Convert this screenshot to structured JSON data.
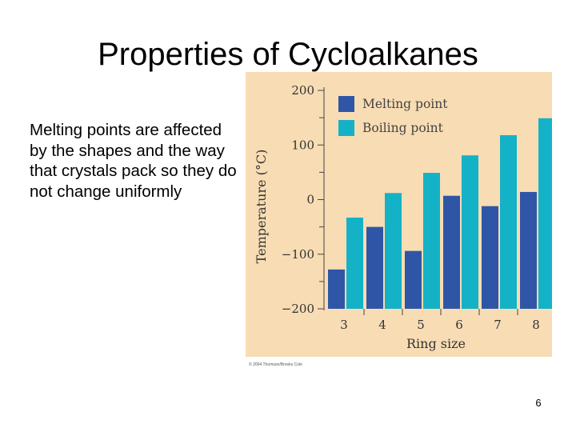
{
  "slide": {
    "title": "Properties of Cycloalkanes",
    "body": "Melting points are affected by the shapes and the way that crystals pack so they do not change uniformly",
    "copyright": "© 2004 Thomson/Brooks Cole",
    "page_number": "6"
  },
  "colors": {
    "panel_background": "#f8dcb4",
    "melting_point": "#2f56a6",
    "boiling_point": "#14b2c6"
  },
  "chart_data": {
    "type": "bar",
    "title": "",
    "xlabel": "Ring size",
    "ylabel": "Temperature (°C)",
    "ylim": [
      -200,
      200
    ],
    "yticks": [
      -200,
      -100,
      0,
      100,
      200
    ],
    "ytick_labels": [
      "−200",
      "−100",
      "0",
      "100",
      "200"
    ],
    "grid": false,
    "legend_position": "top-right",
    "categories": [
      "3",
      "4",
      "5",
      "6",
      "7",
      "8"
    ],
    "series": [
      {
        "name": "Melting point",
        "color": "#2f56a6",
        "values": [
          -128,
          -50,
          -94,
          7,
          -12,
          14
        ]
      },
      {
        "name": "Boiling point",
        "color": "#14b2c6",
        "values": [
          -33,
          12,
          49,
          81,
          118,
          149
        ]
      }
    ]
  }
}
